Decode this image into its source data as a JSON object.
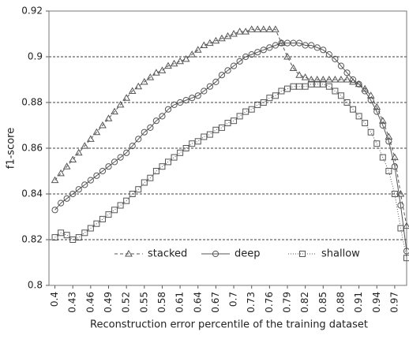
{
  "chart_data": {
    "type": "line",
    "x_label": "Reconstruction error percentile of the training dataset",
    "y_label": "f1-score",
    "x": [
      0.4,
      0.41,
      0.42,
      0.43,
      0.44,
      0.45,
      0.46,
      0.47,
      0.48,
      0.49,
      0.5,
      0.51,
      0.52,
      0.53,
      0.54,
      0.55,
      0.56,
      0.57,
      0.58,
      0.59,
      0.6,
      0.61,
      0.62,
      0.63,
      0.64,
      0.65,
      0.66,
      0.67,
      0.68,
      0.69,
      0.7,
      0.71,
      0.72,
      0.73,
      0.74,
      0.75,
      0.76,
      0.77,
      0.78,
      0.79,
      0.8,
      0.81,
      0.82,
      0.83,
      0.84,
      0.85,
      0.86,
      0.87,
      0.88,
      0.89,
      0.9,
      0.91,
      0.92,
      0.93,
      0.94,
      0.95,
      0.96,
      0.97,
      0.98,
      0.99
    ],
    "series": [
      {
        "name": "stacked",
        "color": "#555555",
        "marker": "triangle",
        "dash": "dashed",
        "values": [
          0.846,
          0.849,
          0.852,
          0.855,
          0.858,
          0.861,
          0.864,
          0.867,
          0.87,
          0.873,
          0.876,
          0.879,
          0.882,
          0.885,
          0.887,
          0.889,
          0.891,
          0.893,
          0.894,
          0.896,
          0.897,
          0.898,
          0.899,
          0.901,
          0.903,
          0.905,
          0.906,
          0.907,
          0.908,
          0.909,
          0.91,
          0.911,
          0.911,
          0.912,
          0.912,
          0.912,
          0.912,
          0.912,
          0.906,
          0.9,
          0.895,
          0.892,
          0.891,
          0.89,
          0.89,
          0.89,
          0.89,
          0.89,
          0.89,
          0.89,
          0.889,
          0.888,
          0.886,
          0.883,
          0.878,
          0.872,
          0.865,
          0.856,
          0.84,
          0.826
        ]
      },
      {
        "name": "deep",
        "color": "#555555",
        "marker": "circle",
        "dash": "solid",
        "values": [
          0.833,
          0.836,
          0.838,
          0.84,
          0.842,
          0.844,
          0.846,
          0.848,
          0.85,
          0.852,
          0.854,
          0.856,
          0.858,
          0.861,
          0.864,
          0.867,
          0.869,
          0.872,
          0.874,
          0.877,
          0.879,
          0.88,
          0.881,
          0.882,
          0.883,
          0.885,
          0.887,
          0.889,
          0.892,
          0.894,
          0.896,
          0.898,
          0.9,
          0.901,
          0.902,
          0.903,
          0.904,
          0.905,
          0.906,
          0.906,
          0.906,
          0.906,
          0.905,
          0.905,
          0.904,
          0.903,
          0.901,
          0.899,
          0.896,
          0.893,
          0.89,
          0.888,
          0.885,
          0.881,
          0.876,
          0.87,
          0.863,
          0.852,
          0.835,
          0.815
        ]
      },
      {
        "name": "shallow",
        "color": "#555555",
        "marker": "square",
        "dash": "dotted",
        "values": [
          0.821,
          0.823,
          0.822,
          0.82,
          0.821,
          0.823,
          0.825,
          0.827,
          0.829,
          0.831,
          0.833,
          0.835,
          0.837,
          0.84,
          0.842,
          0.845,
          0.847,
          0.85,
          0.852,
          0.854,
          0.856,
          0.858,
          0.86,
          0.862,
          0.863,
          0.865,
          0.866,
          0.868,
          0.869,
          0.871,
          0.872,
          0.874,
          0.876,
          0.877,
          0.879,
          0.88,
          0.882,
          0.883,
          0.885,
          0.886,
          0.887,
          0.887,
          0.887,
          0.888,
          0.888,
          0.888,
          0.887,
          0.885,
          0.883,
          0.88,
          0.877,
          0.874,
          0.871,
          0.867,
          0.862,
          0.856,
          0.85,
          0.84,
          0.825,
          0.812
        ]
      }
    ],
    "xlim": [
      0.39,
      0.99
    ],
    "xticks": [
      0.4,
      0.43,
      0.46,
      0.49,
      0.52,
      0.55,
      0.58,
      0.61,
      0.64,
      0.67,
      0.7,
      0.73,
      0.76,
      0.79,
      0.82,
      0.85,
      0.88,
      0.91,
      0.94,
      0.97
    ],
    "ylim": [
      0.8,
      0.92
    ],
    "yticks": [
      0.8,
      0.82,
      0.84,
      0.86,
      0.88,
      0.9,
      0.92
    ],
    "grid": true,
    "legend": "lower center"
  }
}
